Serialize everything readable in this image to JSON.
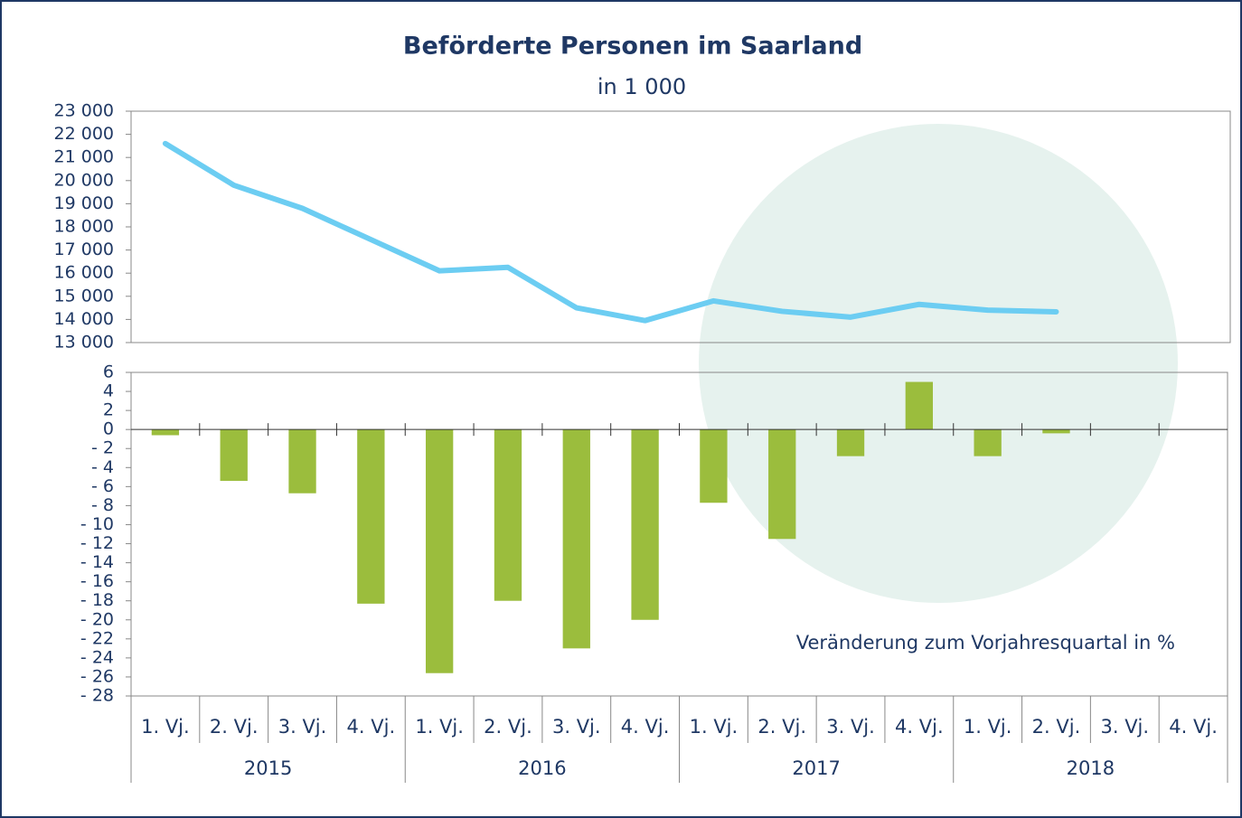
{
  "chart_data": [
    {
      "type": "line",
      "title": "Beförderte Personen im Saarland",
      "subtitle": "in 1 000",
      "categories": [
        "1. Vj.",
        "2. Vj.",
        "3. Vj.",
        "4. Vj.",
        "1. Vj.",
        "2. Vj.",
        "3. Vj.",
        "4. Vj.",
        "1. Vj.",
        "2. Vj.",
        "3. Vj.",
        "4. Vj.",
        "1. Vj.",
        "2. Vj.",
        "3. Vj.",
        "4. Vj."
      ],
      "years": [
        "2015",
        "2016",
        "2017",
        "2018"
      ],
      "series": [
        {
          "color": "#6ccdf2",
          "values": [
            21600,
            19800,
            18800,
            17450,
            16100,
            16250,
            14500,
            13950,
            14800,
            14350,
            14100,
            14650,
            14400,
            14330,
            null,
            null
          ]
        }
      ],
      "ylim": [
        13000,
        23000
      ],
      "yticks": [
        {
          "value": 13000,
          "label": "13 000"
        },
        {
          "value": 14000,
          "label": "14 000"
        },
        {
          "value": 15000,
          "label": "15 000"
        },
        {
          "value": 16000,
          "label": "16 000"
        },
        {
          "value": 17000,
          "label": "17 000"
        },
        {
          "value": 18000,
          "label": "18 000"
        },
        {
          "value": 19000,
          "label": "19 000"
        },
        {
          "value": 20000,
          "label": "20 000"
        },
        {
          "value": 21000,
          "label": "21 000"
        },
        {
          "value": 22000,
          "label": "22 000"
        },
        {
          "value": 23000,
          "label": "23 000"
        }
      ]
    },
    {
      "type": "bar",
      "annotation": "Veränderung zum Vorjahresquartal in %",
      "color": "#9bbd3d",
      "values": [
        -0.6,
        -5.4,
        -6.7,
        -18.3,
        -25.6,
        -18,
        -23,
        -20,
        -7.7,
        -11.5,
        -2.8,
        5,
        -2.8,
        -0.4,
        null,
        null
      ],
      "ylim": [
        -28,
        6
      ],
      "yticks": [
        {
          "value": -28,
          "label": "- 28"
        },
        {
          "value": -26,
          "label": "- 26"
        },
        {
          "value": -24,
          "label": "- 24"
        },
        {
          "value": -22,
          "label": "- 22"
        },
        {
          "value": -20,
          "label": "- 20"
        },
        {
          "value": -18,
          "label": "- 18"
        },
        {
          "value": -16,
          "label": "- 16"
        },
        {
          "value": -14,
          "label": "- 14"
        },
        {
          "value": -12,
          "label": "- 12"
        },
        {
          "value": -10,
          "label": "- 10"
        },
        {
          "value": -8,
          "label": "- 8"
        },
        {
          "value": -6,
          "label": "- 6"
        },
        {
          "value": -4,
          "label": "- 4"
        },
        {
          "value": -2,
          "label": "- 2"
        },
        0,
        2,
        4,
        6
      ]
    }
  ]
}
